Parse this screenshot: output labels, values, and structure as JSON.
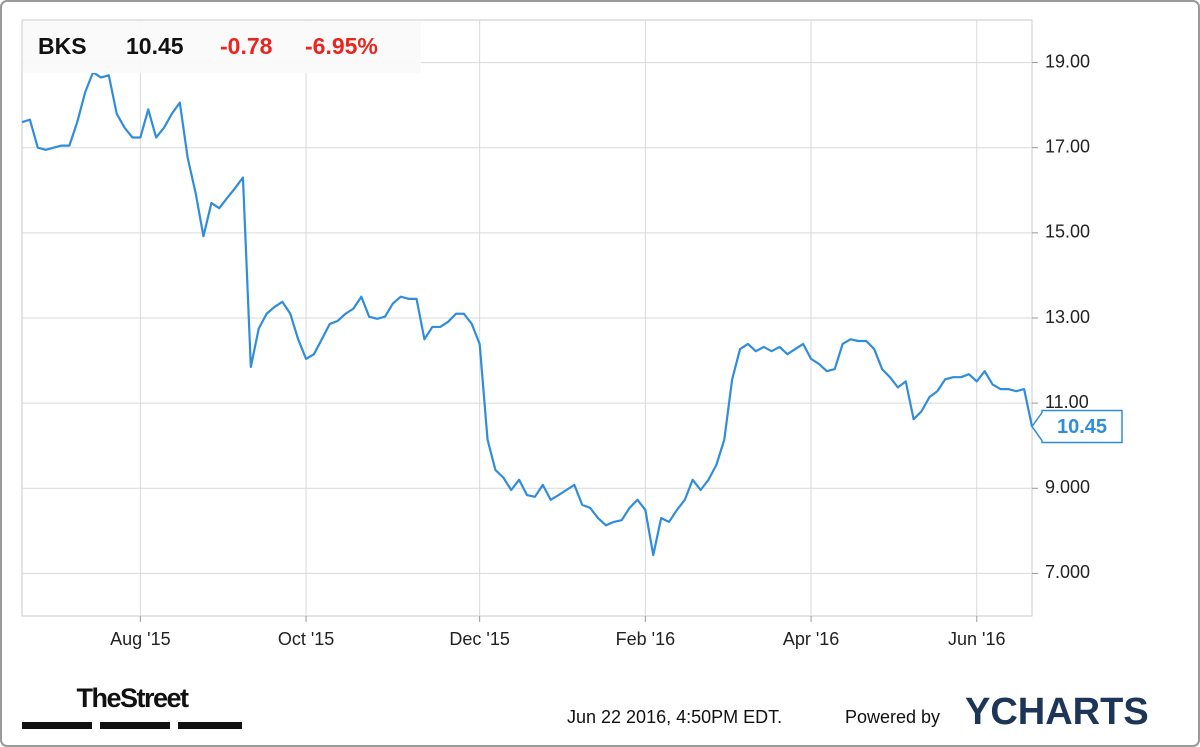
{
  "chart_data": {
    "type": "line",
    "ticker": "BKS",
    "change": "-0.78",
    "change_pct": "-6.95%",
    "color": "#2f8ddb",
    "change_color": "#e8261f",
    "values": [
      17.6,
      17.66,
      17.0,
      16.95,
      17.0,
      17.05,
      17.05,
      17.6,
      18.3,
      18.77,
      18.65,
      18.7,
      17.8,
      17.47,
      17.24,
      17.24,
      17.9,
      17.24,
      17.47,
      17.8,
      18.06,
      16.76,
      15.94,
      14.92,
      15.7,
      15.58,
      15.82,
      16.05,
      16.3,
      11.85,
      12.75,
      13.1,
      13.26,
      13.38,
      13.1,
      12.5,
      12.04,
      12.15,
      12.5,
      12.86,
      12.93,
      13.1,
      13.22,
      13.5,
      13.03,
      12.98,
      13.03,
      13.34,
      13.5,
      13.45,
      13.45,
      12.5,
      12.79,
      12.79,
      12.91,
      13.1,
      13.1,
      12.86,
      12.39,
      10.14,
      9.43,
      9.25,
      8.96,
      9.2,
      8.84,
      8.8,
      9.08,
      8.73,
      8.84,
      8.96,
      9.08,
      8.61,
      8.54,
      8.3,
      8.13,
      8.21,
      8.25,
      8.54,
      8.73,
      8.49,
      7.43,
      8.3,
      8.21,
      8.49,
      8.73,
      9.2,
      8.96,
      9.2,
      9.55,
      10.14,
      11.56,
      12.27,
      12.39,
      12.22,
      12.32,
      12.22,
      12.32,
      12.15,
      12.27,
      12.39,
      12.04,
      11.92,
      11.75,
      11.8,
      12.39,
      12.5,
      12.46,
      12.46,
      12.27,
      11.8,
      11.61,
      11.37,
      11.51,
      10.62,
      10.81,
      11.14,
      11.28,
      11.56,
      11.61,
      11.61,
      11.68,
      11.51,
      11.75,
      11.44,
      11.33,
      11.33,
      11.28,
      11.33,
      10.45
    ],
    "xlim": [
      0,
      128
    ],
    "xticks": [
      {
        "value": 15,
        "label": "Aug '15"
      },
      {
        "value": 36,
        "label": "Oct '15"
      },
      {
        "value": 58,
        "label": "Dec '15"
      },
      {
        "value": 79,
        "label": "Feb '16"
      },
      {
        "value": 100,
        "label": "Apr '16"
      },
      {
        "value": 121,
        "label": "Jun '16"
      }
    ],
    "ylim": [
      6,
      20
    ],
    "yticks": [
      {
        "value": 7,
        "label": "7.000"
      },
      {
        "value": 9,
        "label": "9.000"
      },
      {
        "value": 11,
        "label": "11.00"
      },
      {
        "value": 13,
        "label": "13.00"
      },
      {
        "value": 15,
        "label": "15.00"
      },
      {
        "value": 17,
        "label": "17.00"
      },
      {
        "value": 19,
        "label": "19.00"
      }
    ],
    "grid": true,
    "logo": "TheStreet",
    "timestamp": "Jun 22 2016, 4:50PM EDT.",
    "powered_by": "Powered by",
    "brand": "YCHARTS"
  }
}
